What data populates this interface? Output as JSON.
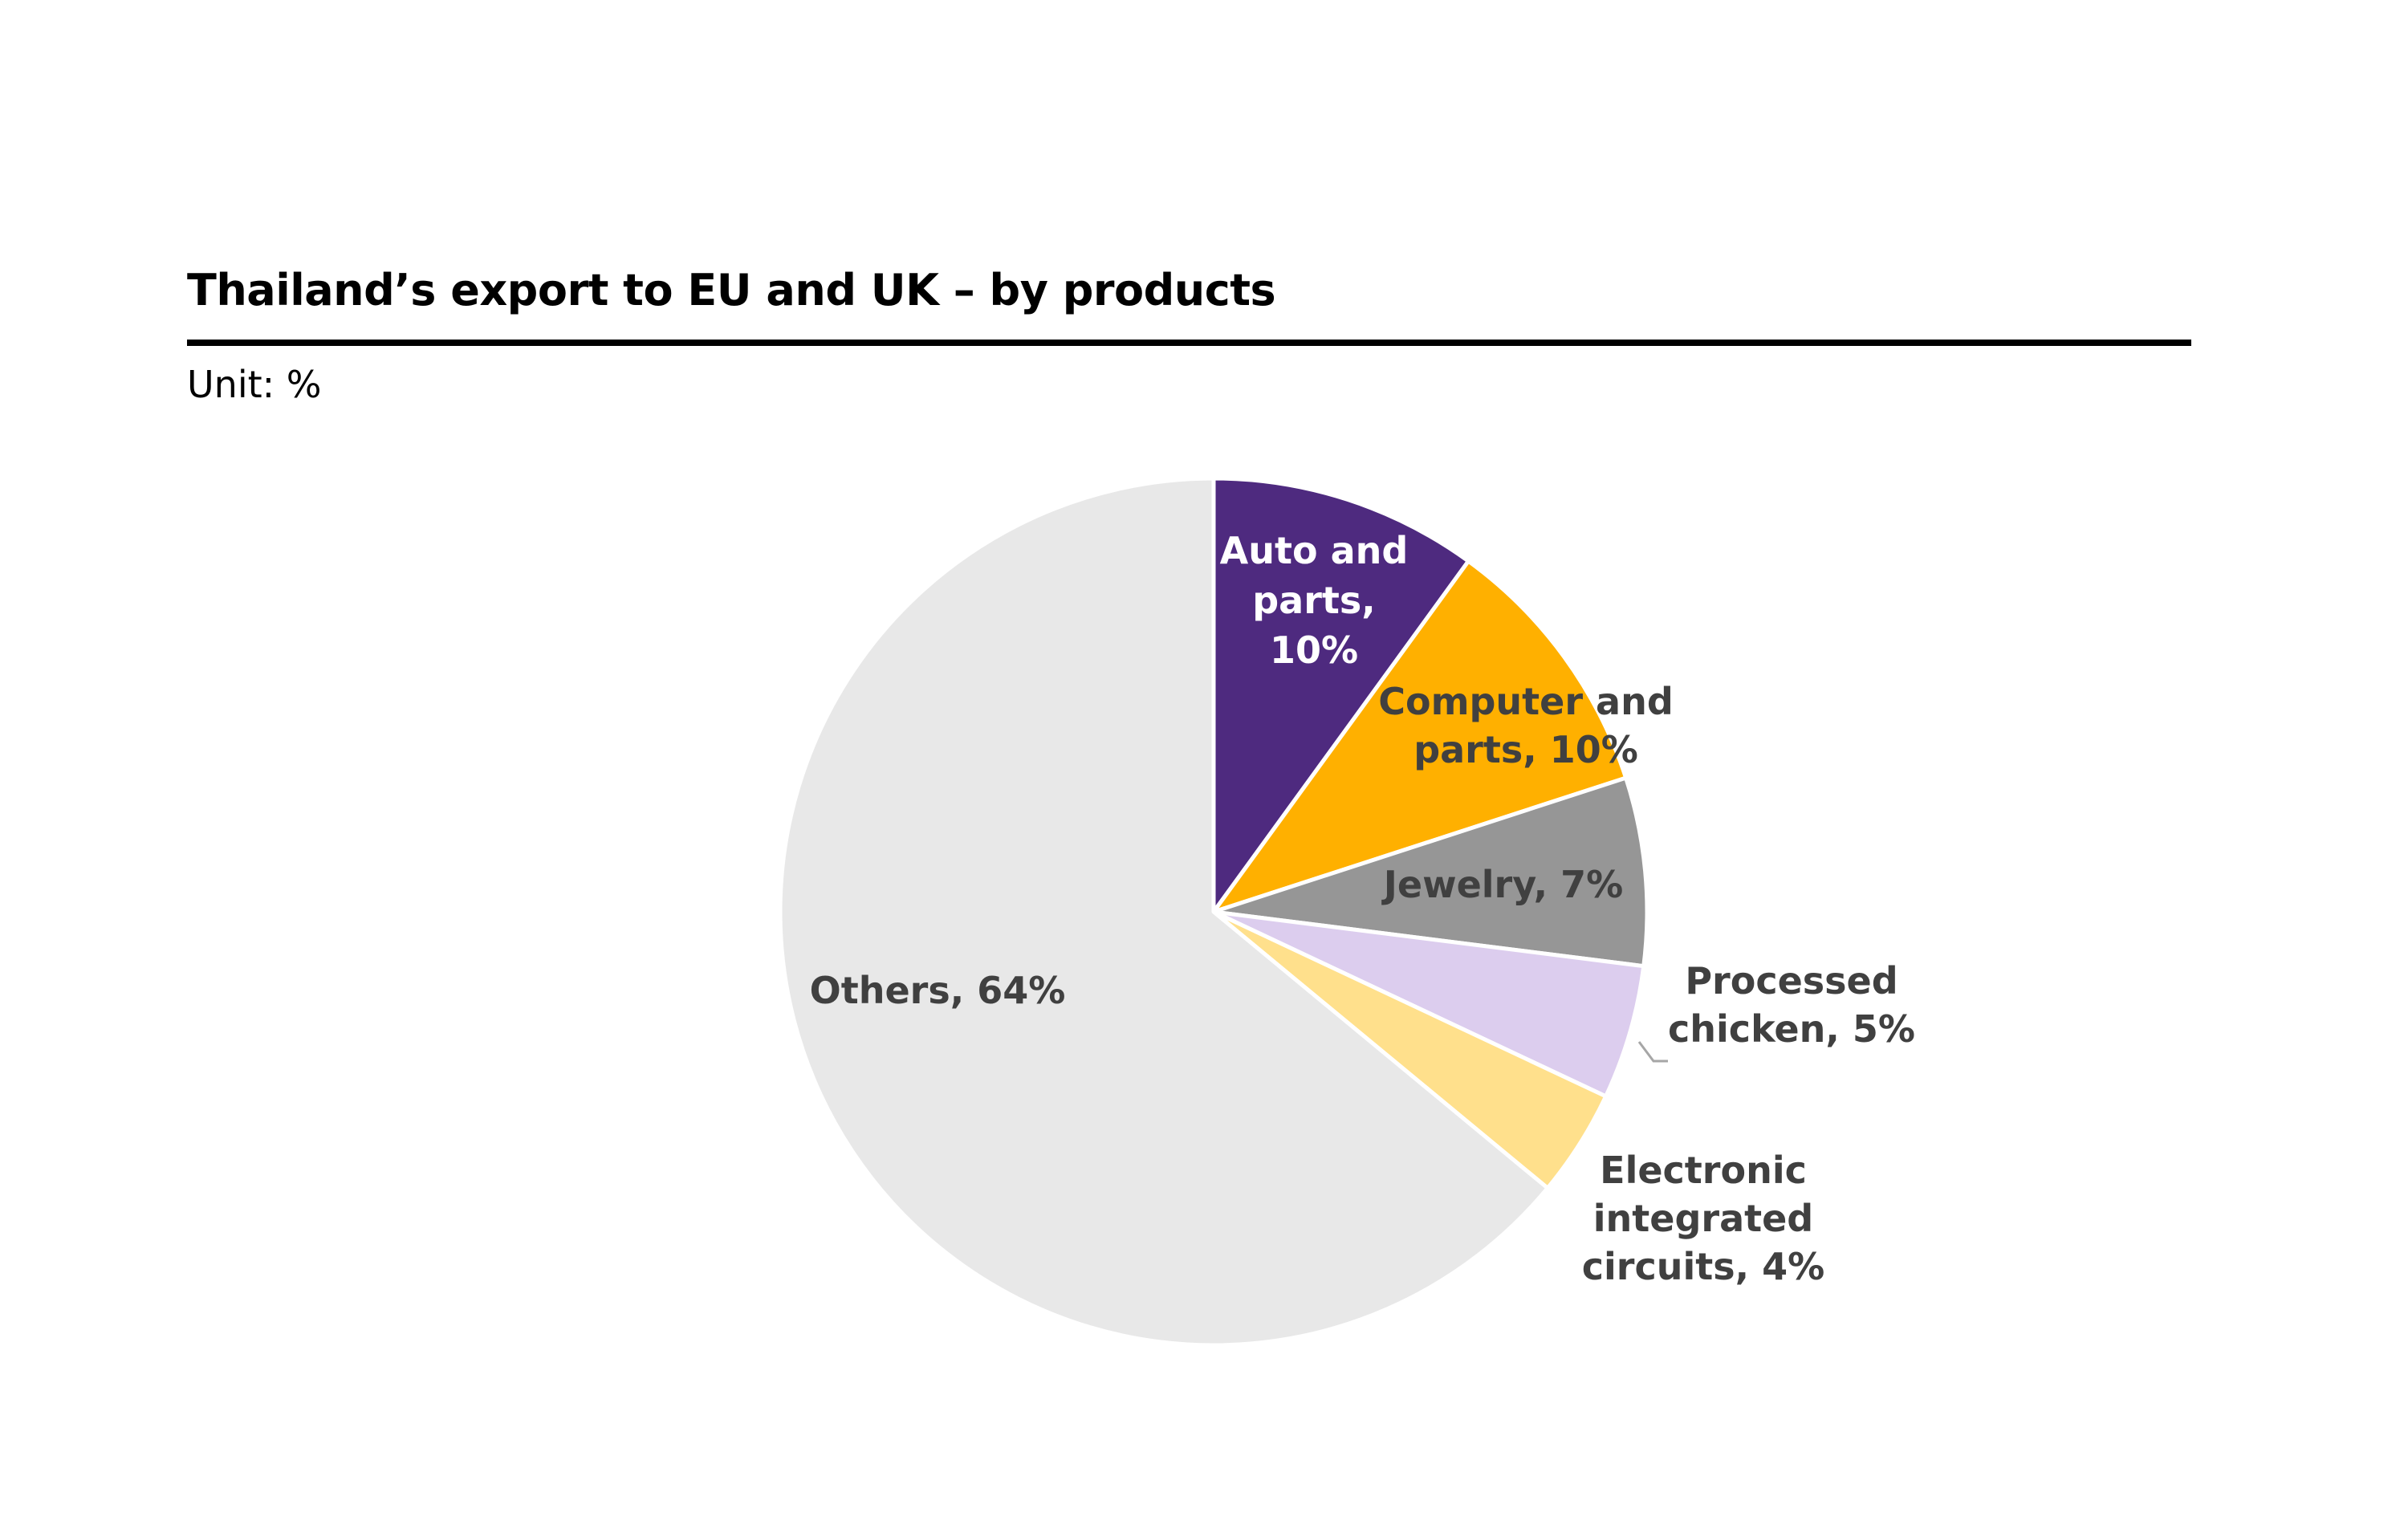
{
  "chart_data": {
    "type": "pie",
    "title": "Thailand’s export to EU and UK – by products",
    "unit_label": "Unit: %",
    "slices": [
      {
        "name": "Auto and parts",
        "value": 10,
        "color": "#4E2A7F",
        "label_lines": [
          "Auto and",
          "parts,",
          "10%"
        ],
        "label_color": "#ffffff"
      },
      {
        "name": "Computer and parts",
        "value": 10,
        "color": "#FFB000",
        "label_lines": [
          "Computer and",
          "parts, 10%"
        ],
        "label_color": "#404040"
      },
      {
        "name": "Jewelry",
        "value": 7,
        "color": "#969696",
        "label_lines": [
          "Jewelry, 7%"
        ],
        "label_color": "#404040"
      },
      {
        "name": "Processed chicken",
        "value": 5,
        "color": "#DCCDEE",
        "label_lines": [
          "Processed",
          "chicken, 5%"
        ],
        "label_color": "#404040"
      },
      {
        "name": "Electronic integrated circuits",
        "value": 4,
        "color": "#FFE08C",
        "label_lines": [
          "Electronic",
          "integrated",
          "circuits, 4%"
        ],
        "label_color": "#404040"
      },
      {
        "name": "Others",
        "value": 64,
        "color": "#E8E8E8",
        "label_lines": [
          "Others, 64%"
        ],
        "label_color": "#404040"
      }
    ],
    "start_angle": "12 o'clock",
    "direction": "clockwise",
    "legend": "none"
  }
}
